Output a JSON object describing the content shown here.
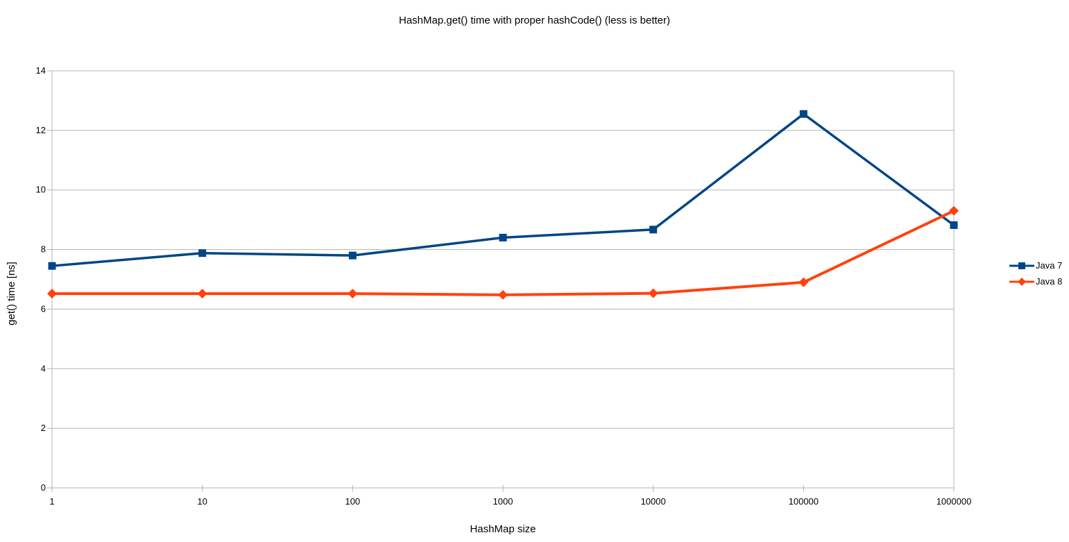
{
  "chart_data": {
    "type": "line",
    "title": "HashMap.get() time with proper hashCode() (less is better)",
    "xlabel": "HashMap size",
    "ylabel": "get() time [ns]",
    "x_scale": "log-categorical",
    "categories": [
      "1",
      "10",
      "100",
      "1000",
      "10000",
      "100000",
      "1000000"
    ],
    "ylim": [
      0,
      14
    ],
    "ytick_step": 2,
    "grid": true,
    "legend_position": "right-middle",
    "series": [
      {
        "name": "Java 7",
        "color": "#004586",
        "marker": "square",
        "values": [
          7.45,
          7.88,
          7.8,
          8.4,
          8.67,
          12.55,
          8.82
        ]
      },
      {
        "name": "Java 8",
        "color": "#ff420e",
        "marker": "diamond",
        "values": [
          6.52,
          6.52,
          6.52,
          6.48,
          6.53,
          6.9,
          9.3
        ]
      }
    ],
    "colors": {
      "grid": "#b3b3b3",
      "axis": "#b3b3b3",
      "text": "#000000",
      "background": "#ffffff"
    }
  }
}
